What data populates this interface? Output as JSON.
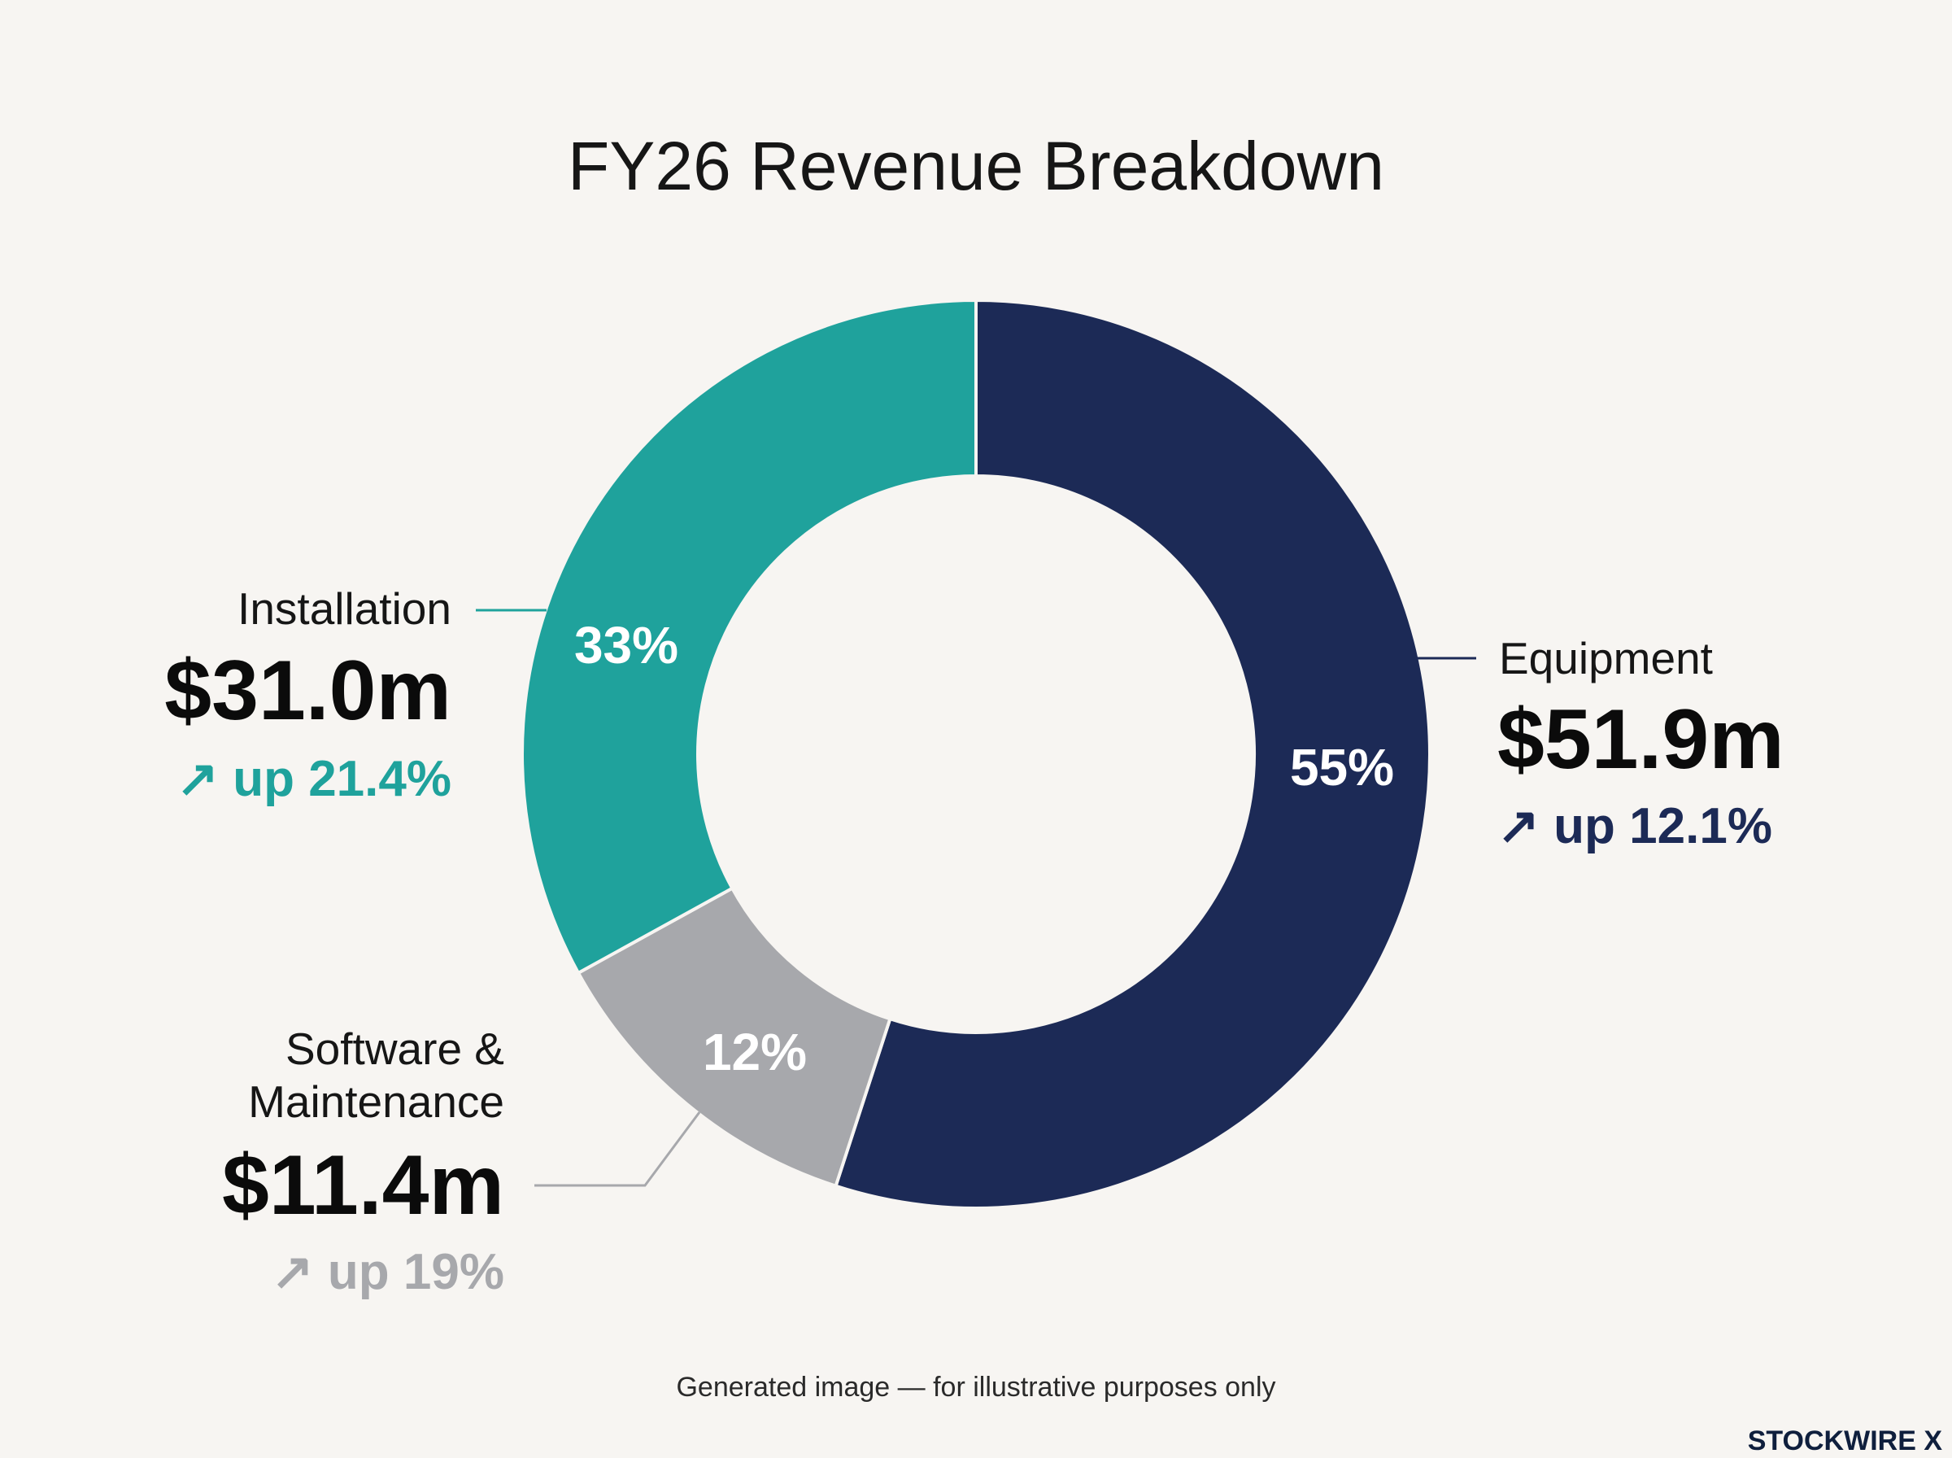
{
  "chart_data": {
    "type": "pie",
    "title": "FY26 Revenue Breakdown",
    "segments": [
      {
        "name": "Equipment",
        "percent": 55,
        "percent_label": "55%",
        "value": 51.9,
        "value_label": "$51.9m",
        "growth_label": "↗ up 12.1%",
        "color": "#1c2a56"
      },
      {
        "name": "Software & Maintenance",
        "name_lines": [
          "Software &",
          "Maintenance"
        ],
        "percent": 12,
        "percent_label": "12%",
        "value": 11.4,
        "value_label": "$11.4m",
        "growth_label": "↗ up 19%",
        "color": "#a7a8ac"
      },
      {
        "name": "Installation",
        "percent": 33,
        "percent_label": "33%",
        "value": 31.0,
        "value_label": "$31.0m",
        "growth_label": "↗ up 21.4%",
        "color": "#1fa29c"
      }
    ]
  },
  "footer": {
    "note": "Generated image — for illustrative purposes only",
    "brand": "STOCKWIRE X"
  }
}
